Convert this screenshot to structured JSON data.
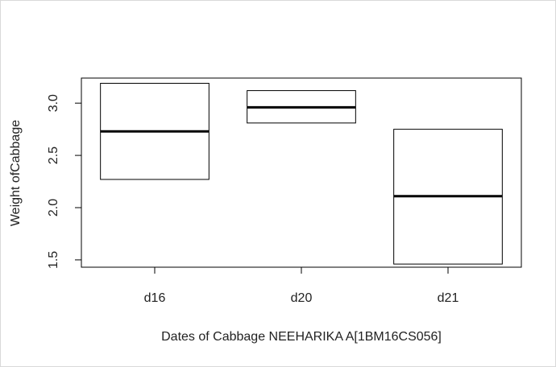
{
  "chart_data": {
    "type": "boxplot",
    "title": "",
    "xlabel": "Dates of Cabbage NEEHARIKA A[1BM16CS056]",
    "ylabel": "Weight ofCabbage",
    "categories": [
      "d16",
      "d20",
      "d21"
    ],
    "boxes": [
      {
        "category": "d16",
        "q1": 2.27,
        "median": 2.73,
        "q3": 3.19
      },
      {
        "category": "d20",
        "q1": 2.81,
        "median": 2.96,
        "q3": 3.12
      },
      {
        "category": "d21",
        "q1": 1.46,
        "median": 2.11,
        "q3": 2.75
      }
    ],
    "yticks": [
      "1.5",
      "2.0",
      "2.5",
      "3.0"
    ],
    "ylim": [
      1.43,
      3.24
    ],
    "grid": false,
    "legend": "none",
    "colors": {
      "box_stroke": "#000000",
      "median": "#000000",
      "background": "#ffffff"
    }
  }
}
